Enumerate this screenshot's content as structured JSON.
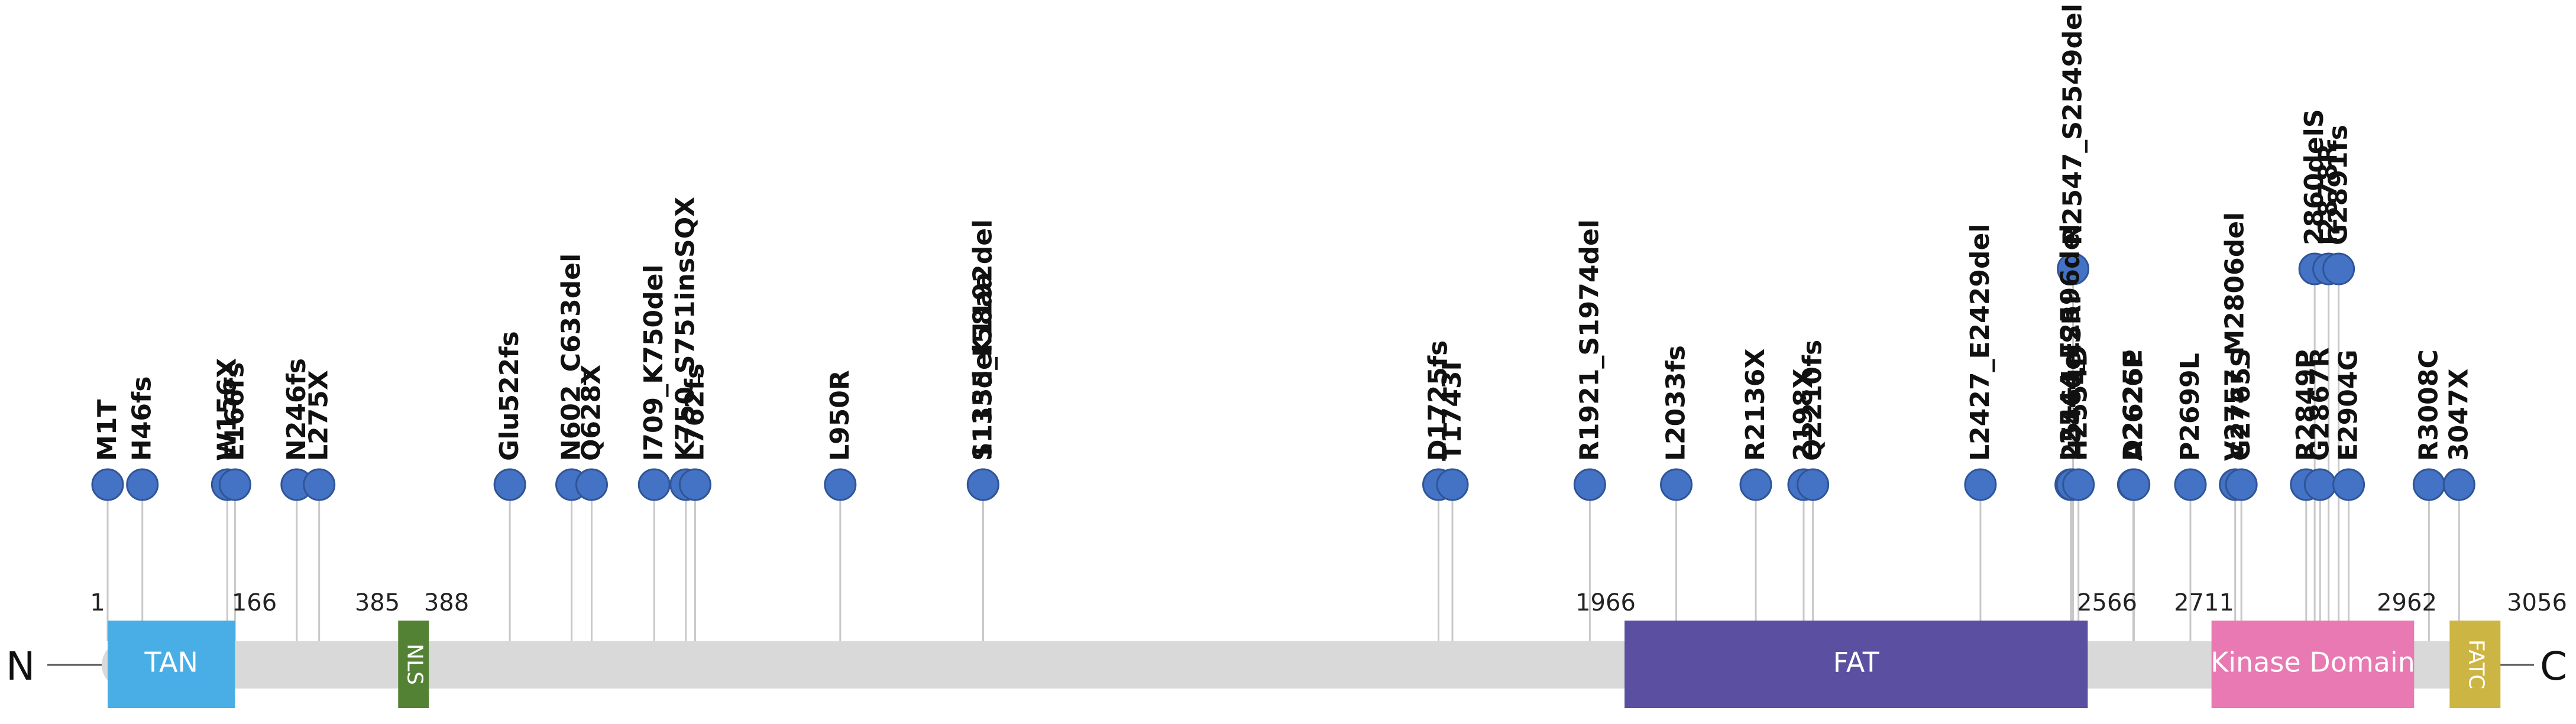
{
  "n_terminus": "N",
  "c_terminus": "C",
  "protein_length": 3056,
  "colors": {
    "backbone": "#d9d9d9",
    "stem": "#c8c8c8",
    "marker_fill": "#4472c4",
    "marker_stroke": "#2f5597"
  },
  "domains": [
    {
      "name": "TAN",
      "start": 1,
      "end": 166,
      "color": "#4aaee6",
      "label_rotated": false
    },
    {
      "name": "NLS",
      "start": 385,
      "end": 388,
      "color": "#548235",
      "label_rotated": true
    },
    {
      "name": "FAT",
      "start": 1966,
      "end": 2566,
      "color": "#5a4fa0",
      "label_rotated": false
    },
    {
      "name": "Kinase Domain",
      "start": 2711,
      "end": 2962,
      "color": "#e879b2",
      "label_rotated": false
    },
    {
      "name": "FATC",
      "start": 2962,
      "end": 3056,
      "color": "#cdb543",
      "label_rotated": true
    }
  ],
  "position_labels": [
    "1",
    "166",
    "385",
    "388",
    "1966",
    "2566",
    "2711",
    "2962",
    "3056"
  ],
  "mutations": [
    {
      "label": "M1T",
      "position": 1,
      "level": 0
    },
    {
      "label": "H46fs",
      "position": 46,
      "level": 0
    },
    {
      "label": "W156X",
      "position": 156,
      "level": 0
    },
    {
      "label": "E166fs",
      "position": 166,
      "level": 0
    },
    {
      "label": "N246fs",
      "position": 246,
      "level": 0
    },
    {
      "label": "L275X",
      "position": 275,
      "level": 0
    },
    {
      "label": "Glu522fs",
      "position": 522,
      "level": 0
    },
    {
      "label": "N602_C633del",
      "position": 602,
      "level": 0
    },
    {
      "label": "Q628X",
      "position": 628,
      "level": 0
    },
    {
      "label": "I709_K750del",
      "position": 709,
      "level": 0
    },
    {
      "label": "K750_S751insSQX",
      "position": 750,
      "level": 0
    },
    {
      "label": "L762fs",
      "position": 762,
      "level": 0
    },
    {
      "label": "L950R",
      "position": 950,
      "level": 0
    },
    {
      "label": "1135del58aa",
      "position": 1135,
      "level": 0
    },
    {
      "label": "S1135_K1192del",
      "position": 1135,
      "level": 0
    },
    {
      "label": "D1725fs",
      "position": 1725,
      "level": 0
    },
    {
      "label": "T1743I",
      "position": 1743,
      "level": 0
    },
    {
      "label": "R1921_S1974del",
      "position": 1921,
      "level": 0
    },
    {
      "label": "L2033fs",
      "position": 2033,
      "level": 0
    },
    {
      "label": "R2136X",
      "position": 2136,
      "level": 0
    },
    {
      "label": "2198X",
      "position": 2198,
      "level": 0
    },
    {
      "label": "Q2210fs",
      "position": 2210,
      "level": 0
    },
    {
      "label": "L2427_E2429del",
      "position": 2427,
      "level": 0
    },
    {
      "label": "L2544_E2596del",
      "position": 2544,
      "level": 0
    },
    {
      "label": "2546delSRI",
      "position": 2546,
      "level": 0
    },
    {
      "label": "R2547_S2549del",
      "position": 2547,
      "level": 1
    },
    {
      "label": "H2554D",
      "position": 2554,
      "level": 0
    },
    {
      "label": "D2625E",
      "position": 2625,
      "level": 0
    },
    {
      "label": "A2626P",
      "position": 2626,
      "level": 0
    },
    {
      "label": "P2699L",
      "position": 2699,
      "level": 0
    },
    {
      "label": "V2757_M2806del",
      "position": 2757,
      "level": 0
    },
    {
      "label": "G2765S",
      "position": 2765,
      "level": 0
    },
    {
      "label": "R2849P",
      "position": 2849,
      "level": 0
    },
    {
      "label": "2860delS",
      "position": 2860,
      "level": 1
    },
    {
      "label": "G2867R",
      "position": 2867,
      "level": 0
    },
    {
      "label": "I2878R",
      "position": 2878,
      "level": 1
    },
    {
      "label": "E2904G",
      "position": 2904,
      "level": 0
    },
    {
      "label": "G2891fs",
      "position": 2891,
      "level": 1
    },
    {
      "label": "R3008C",
      "position": 3008,
      "level": 0
    },
    {
      "label": "3047X",
      "position": 3047,
      "level": 0
    }
  ]
}
